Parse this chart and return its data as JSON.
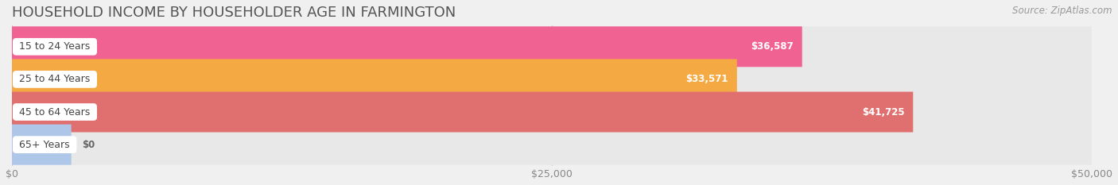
{
  "title": "HOUSEHOLD INCOME BY HOUSEHOLDER AGE IN FARMINGTON",
  "source": "Source: ZipAtlas.com",
  "categories": [
    "15 to 24 Years",
    "25 to 44 Years",
    "45 to 64 Years",
    "65+ Years"
  ],
  "values": [
    36587,
    33571,
    41725,
    0
  ],
  "bar_colors": [
    "#f06292",
    "#f4a942",
    "#e07070",
    "#aec6e8"
  ],
  "value_labels": [
    "$36,587",
    "$33,571",
    "$41,725",
    "$0"
  ],
  "xmax": 50000,
  "xticks": [
    0,
    25000,
    50000
  ],
  "xtick_labels": [
    "$0",
    "$25,000",
    "$50,000"
  ],
  "background_color": "#f0f0f0",
  "bar_track_color": "#e8e8e8",
  "title_fontsize": 13,
  "source_fontsize": 8.5,
  "label_fontsize": 9,
  "value_fontsize": 8.5,
  "tick_fontsize": 9,
  "bar_height": 0.62,
  "bar_gap": 0.18,
  "figsize": [
    14.06,
    2.33
  ]
}
